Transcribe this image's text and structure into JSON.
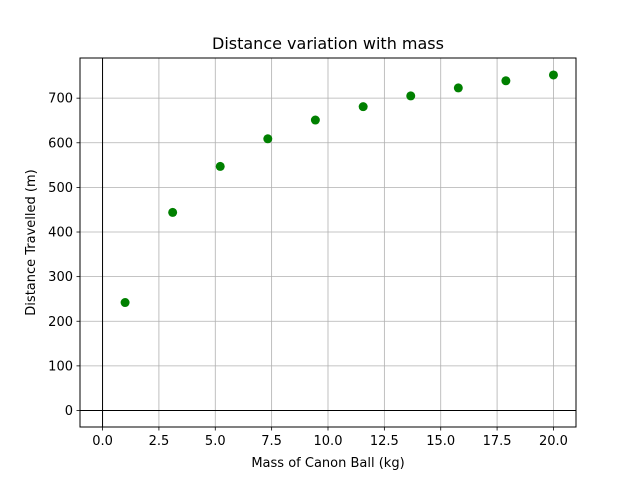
{
  "chart_data": {
    "type": "scatter",
    "title": "Distance variation with mass",
    "xlabel": "Mass of Canon Ball (kg)",
    "ylabel": "Distance Travelled (m)",
    "xlim": [
      -1.0,
      21.0
    ],
    "ylim": [
      -37,
      790
    ],
    "xticks": [
      0.0,
      2.5,
      5.0,
      7.5,
      10.0,
      12.5,
      15.0,
      17.5,
      20.0
    ],
    "xtick_labels": [
      "0.0",
      "2.5",
      "5.0",
      "7.5",
      "10.0",
      "12.5",
      "15.0",
      "17.5",
      "20.0"
    ],
    "yticks": [
      0,
      100,
      200,
      300,
      400,
      500,
      600,
      700
    ],
    "ytick_labels": [
      "0",
      "100",
      "200",
      "300",
      "400",
      "500",
      "600",
      "700"
    ],
    "grid": true,
    "reference_lines": {
      "x": 0,
      "y": 0
    },
    "marker_color": "#008000",
    "series": [
      {
        "x": [
          1.0,
          3.11,
          5.22,
          7.33,
          9.44,
          11.56,
          13.67,
          15.78,
          17.89,
          20.0
        ],
        "y": [
          242,
          444,
          547,
          609,
          651,
          681,
          705,
          723,
          739,
          752
        ]
      }
    ]
  }
}
